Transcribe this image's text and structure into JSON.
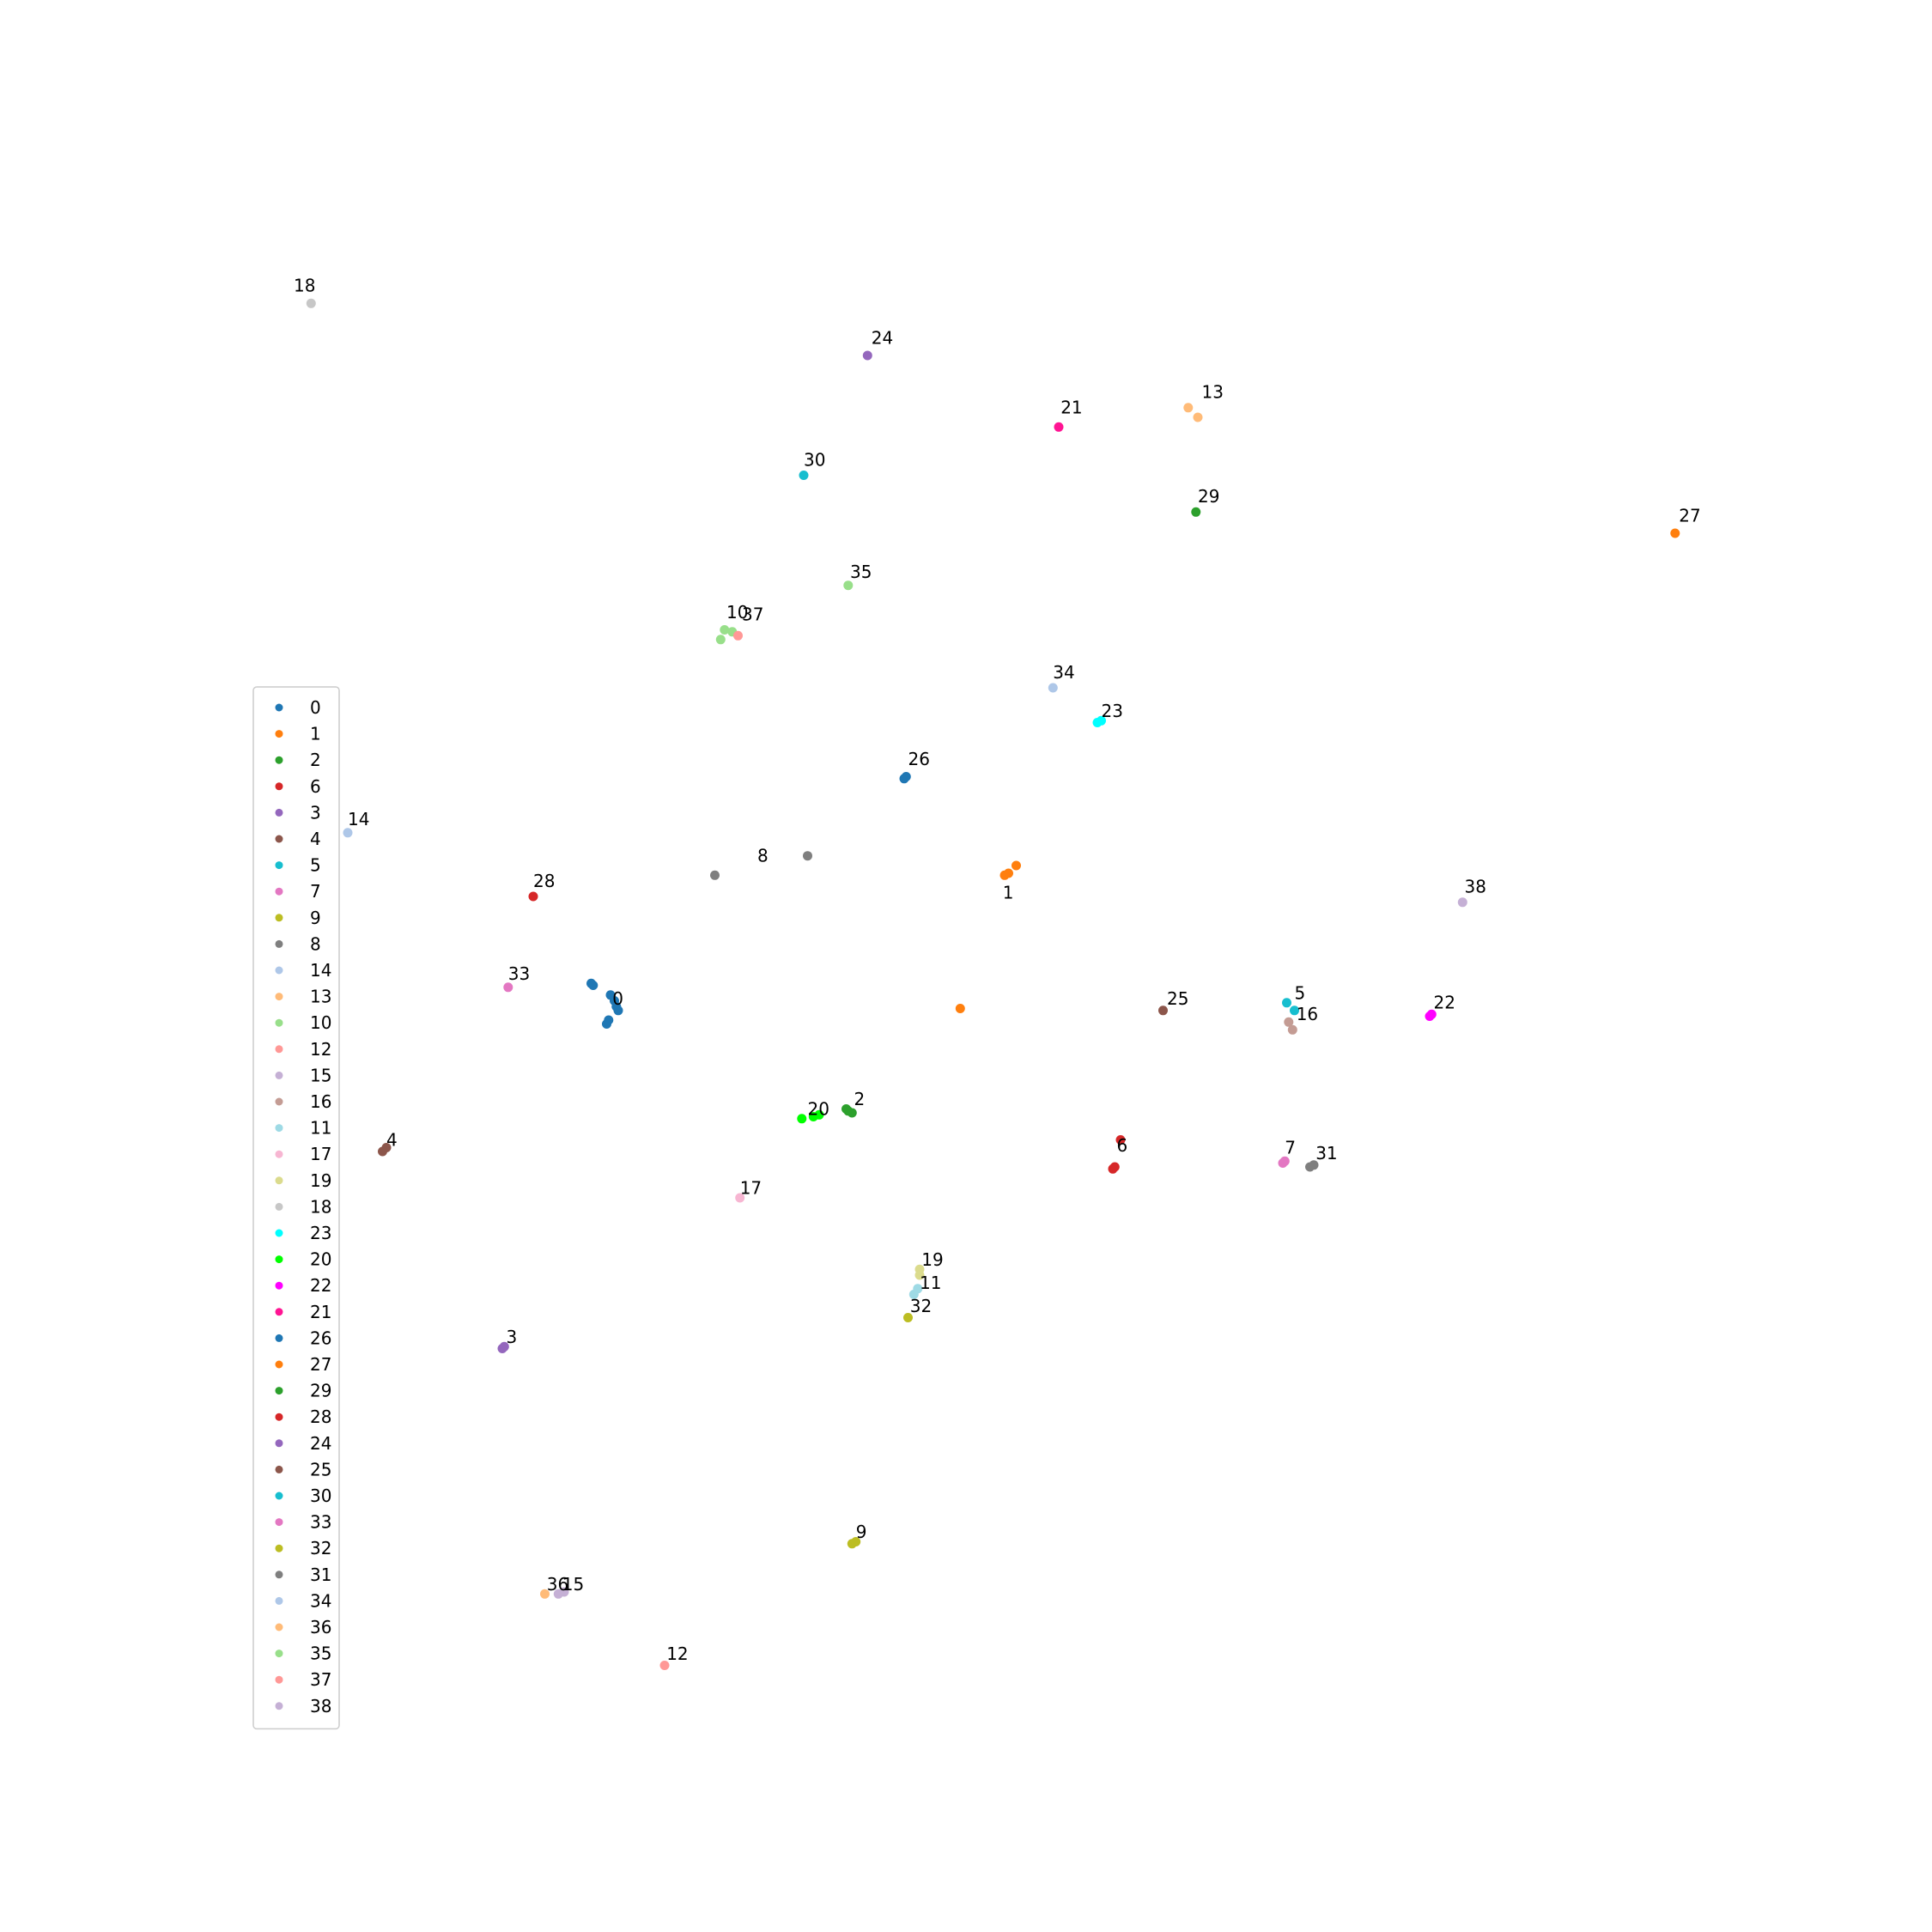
{
  "chart_data": {
    "type": "scatter",
    "title": "",
    "xlabel": "",
    "ylabel": "",
    "axes_visible": false,
    "grid": false,
    "xlim": [
      0,
      100
    ],
    "ylim": [
      0,
      100
    ],
    "legend_position": "center-left",
    "cluster_labels": [
      {
        "text": "18",
        "x": 15.2,
        "y": 84.9
      },
      {
        "text": "24",
        "x": 45.1,
        "y": 82.2
      },
      {
        "text": "13",
        "x": 62.2,
        "y": 79.4
      },
      {
        "text": "21",
        "x": 54.9,
        "y": 78.6
      },
      {
        "text": "30",
        "x": 41.6,
        "y": 75.9
      },
      {
        "text": "29",
        "x": 62.0,
        "y": 74.0
      },
      {
        "text": "27",
        "x": 86.9,
        "y": 73.0
      },
      {
        "text": "35",
        "x": 44.0,
        "y": 70.1
      },
      {
        "text": "10",
        "x": 37.6,
        "y": 68.0
      },
      {
        "text": "37",
        "x": 38.4,
        "y": 67.9
      },
      {
        "text": "34",
        "x": 54.5,
        "y": 64.9
      },
      {
        "text": "23",
        "x": 57.0,
        "y": 62.9
      },
      {
        "text": "26",
        "x": 47.0,
        "y": 60.4
      },
      {
        "text": "14",
        "x": 18.0,
        "y": 57.3
      },
      {
        "text": "8",
        "x": 39.2,
        "y": 55.4
      },
      {
        "text": "28",
        "x": 27.6,
        "y": 54.1
      },
      {
        "text": "1",
        "x": 51.9,
        "y": 53.5
      },
      {
        "text": "38",
        "x": 75.8,
        "y": 53.8
      },
      {
        "text": "33",
        "x": 26.3,
        "y": 49.3
      },
      {
        "text": "0",
        "x": 31.7,
        "y": 48.0
      },
      {
        "text": "25",
        "x": 60.4,
        "y": 48.0
      },
      {
        "text": "5",
        "x": 67.0,
        "y": 48.3
      },
      {
        "text": "22",
        "x": 74.2,
        "y": 47.8
      },
      {
        "text": "16",
        "x": 67.1,
        "y": 47.2
      },
      {
        "text": "2",
        "x": 44.2,
        "y": 42.8
      },
      {
        "text": "20",
        "x": 41.8,
        "y": 42.3
      },
      {
        "text": "4",
        "x": 20.0,
        "y": 40.7
      },
      {
        "text": "6",
        "x": 57.8,
        "y": 40.4
      },
      {
        "text": "7",
        "x": 66.5,
        "y": 40.3
      },
      {
        "text": "31",
        "x": 68.1,
        "y": 40.0
      },
      {
        "text": "17",
        "x": 38.3,
        "y": 38.2
      },
      {
        "text": "19",
        "x": 47.7,
        "y": 34.5
      },
      {
        "text": "11",
        "x": 47.6,
        "y": 33.3
      },
      {
        "text": "32",
        "x": 47.1,
        "y": 32.1
      },
      {
        "text": "3",
        "x": 26.2,
        "y": 30.5
      },
      {
        "text": "9",
        "x": 44.3,
        "y": 20.4
      },
      {
        "text": "36",
        "x": 28.3,
        "y": 17.7
      },
      {
        "text": "15",
        "x": 29.1,
        "y": 17.7
      },
      {
        "text": "12",
        "x": 34.5,
        "y": 14.1
      }
    ],
    "series": [
      {
        "name": "0",
        "color": "#1f77b4",
        "points": [
          [
            30.6,
            49.1
          ],
          [
            30.7,
            49.0
          ],
          [
            31.6,
            48.5
          ],
          [
            31.8,
            48.2
          ],
          [
            31.9,
            47.9
          ],
          [
            32.0,
            47.7
          ],
          [
            31.5,
            47.2
          ],
          [
            31.4,
            47.0
          ]
        ]
      },
      {
        "name": "1",
        "color": "#ff7f0e",
        "points": [
          [
            52.6,
            55.2
          ],
          [
            52.2,
            54.8
          ],
          [
            52.0,
            54.7
          ],
          [
            49.7,
            47.8
          ]
        ]
      },
      {
        "name": "2",
        "color": "#2ca02c",
        "points": [
          [
            43.8,
            42.6
          ],
          [
            44.1,
            42.4
          ],
          [
            43.9,
            42.5
          ]
        ]
      },
      {
        "name": "6",
        "color": "#d62728",
        "points": [
          [
            58.0,
            41.0
          ],
          [
            57.6,
            39.5
          ],
          [
            57.7,
            39.6
          ]
        ]
      },
      {
        "name": "3",
        "color": "#9467bd",
        "points": [
          [
            26.0,
            30.2
          ],
          [
            26.1,
            30.3
          ]
        ]
      },
      {
        "name": "4",
        "color": "#8c564b",
        "points": [
          [
            19.8,
            40.4
          ],
          [
            20.0,
            40.6
          ]
        ]
      },
      {
        "name": "5",
        "color": "#17becf",
        "points": [
          [
            66.6,
            48.1
          ],
          [
            67.0,
            47.7
          ]
        ]
      },
      {
        "name": "7",
        "color": "#e377c2",
        "points": [
          [
            66.4,
            39.8
          ],
          [
            66.5,
            39.9
          ]
        ]
      },
      {
        "name": "9",
        "color": "#bcbd22",
        "points": [
          [
            44.1,
            20.1
          ],
          [
            44.3,
            20.2
          ]
        ]
      },
      {
        "name": "8",
        "color": "#7f7f7f",
        "points": [
          [
            37.0,
            54.7
          ],
          [
            41.8,
            55.7
          ]
        ]
      },
      {
        "name": "14",
        "color": "#aec7e8",
        "points": [
          [
            18.0,
            56.9
          ]
        ]
      },
      {
        "name": "13",
        "color": "#ffbb78",
        "points": [
          [
            61.5,
            78.9
          ],
          [
            62.0,
            78.4
          ]
        ]
      },
      {
        "name": "10",
        "color": "#98df8a",
        "points": [
          [
            37.5,
            67.4
          ],
          [
            37.3,
            66.9
          ],
          [
            37.9,
            67.3
          ]
        ]
      },
      {
        "name": "12",
        "color": "#ff9896",
        "points": [
          [
            34.4,
            13.8
          ]
        ]
      },
      {
        "name": "15",
        "color": "#c5b0d5",
        "points": [
          [
            28.9,
            17.5
          ],
          [
            29.2,
            17.6
          ]
        ]
      },
      {
        "name": "16",
        "color": "#c49c94",
        "points": [
          [
            66.7,
            47.1
          ],
          [
            66.9,
            46.7
          ]
        ]
      },
      {
        "name": "11",
        "color": "#9edae5",
        "points": [
          [
            47.3,
            33.0
          ],
          [
            47.5,
            33.3
          ]
        ]
      },
      {
        "name": "17",
        "color": "#f7b6d2",
        "points": [
          [
            38.3,
            38.0
          ]
        ]
      },
      {
        "name": "19",
        "color": "#dbdb8d",
        "points": [
          [
            47.6,
            34.3
          ],
          [
            47.6,
            34.0
          ]
        ]
      },
      {
        "name": "18",
        "color": "#c7c7c7",
        "points": [
          [
            16.1,
            84.3
          ]
        ]
      },
      {
        "name": "23",
        "color": "#00ffff",
        "points": [
          [
            56.8,
            62.6
          ],
          [
            57.0,
            62.7
          ]
        ]
      },
      {
        "name": "20",
        "color": "#00ff00",
        "points": [
          [
            41.5,
            42.1
          ],
          [
            42.1,
            42.2
          ],
          [
            42.4,
            42.3
          ]
        ]
      },
      {
        "name": "22",
        "color": "#ff00ff",
        "points": [
          [
            74.0,
            47.4
          ],
          [
            74.1,
            47.5
          ]
        ]
      },
      {
        "name": "21",
        "color": "#ff1493",
        "points": [
          [
            54.8,
            77.9
          ]
        ]
      },
      {
        "name": "26",
        "color": "#1f77b4",
        "points": [
          [
            46.8,
            59.7
          ],
          [
            46.9,
            59.8
          ]
        ]
      },
      {
        "name": "27",
        "color": "#ff7f0e",
        "points": [
          [
            86.7,
            72.4
          ]
        ]
      },
      {
        "name": "29",
        "color": "#2ca02c",
        "points": [
          [
            61.9,
            73.5
          ]
        ]
      },
      {
        "name": "28",
        "color": "#d62728",
        "points": [
          [
            27.6,
            53.6
          ]
        ]
      },
      {
        "name": "24",
        "color": "#9467bd",
        "points": [
          [
            44.9,
            81.6
          ]
        ]
      },
      {
        "name": "25",
        "color": "#8c564b",
        "points": [
          [
            60.2,
            47.7
          ]
        ]
      },
      {
        "name": "30",
        "color": "#17becf",
        "points": [
          [
            41.6,
            75.4
          ]
        ]
      },
      {
        "name": "33",
        "color": "#e377c2",
        "points": [
          [
            26.3,
            48.9
          ]
        ]
      },
      {
        "name": "32",
        "color": "#bcbd22",
        "points": [
          [
            47.0,
            31.8
          ]
        ]
      },
      {
        "name": "31",
        "color": "#7f7f7f",
        "points": [
          [
            67.8,
            39.6
          ],
          [
            68.0,
            39.7
          ]
        ]
      },
      {
        "name": "34",
        "color": "#aec7e8",
        "points": [
          [
            54.5,
            64.4
          ]
        ]
      },
      {
        "name": "36",
        "color": "#ffbb78",
        "points": [
          [
            28.2,
            17.5
          ]
        ]
      },
      {
        "name": "35",
        "color": "#98df8a",
        "points": [
          [
            43.9,
            69.7
          ]
        ]
      },
      {
        "name": "37",
        "color": "#ff9896",
        "points": [
          [
            38.2,
            67.1
          ]
        ]
      },
      {
        "name": "38",
        "color": "#c5b0d5",
        "points": [
          [
            75.7,
            53.3
          ]
        ]
      }
    ]
  }
}
